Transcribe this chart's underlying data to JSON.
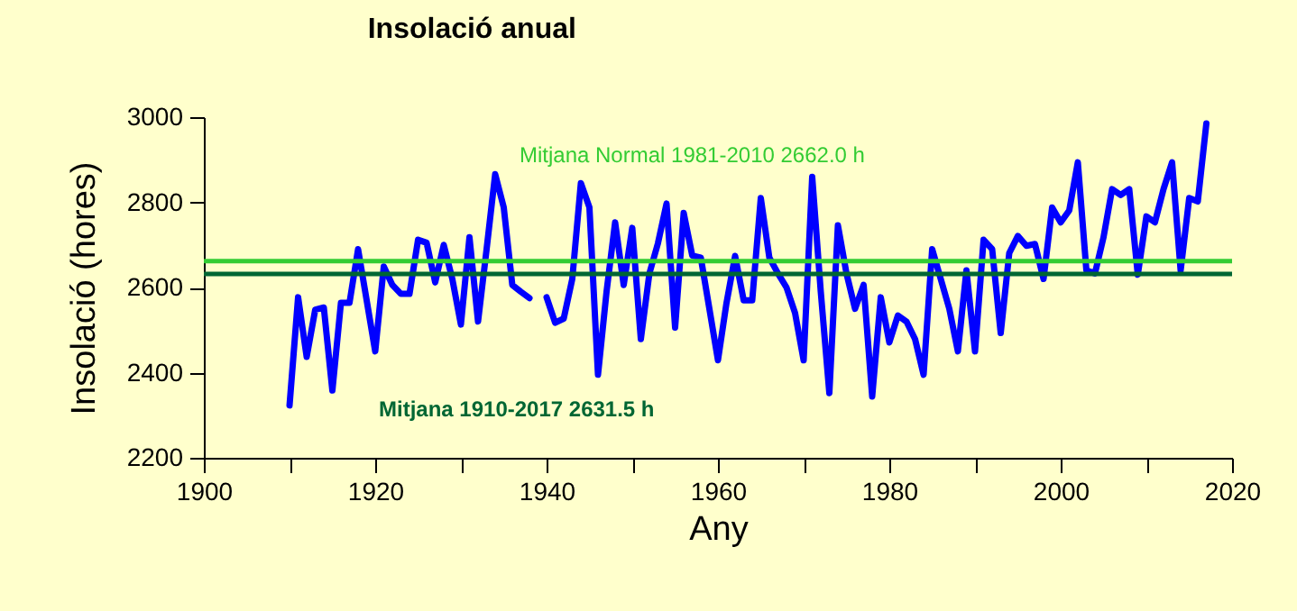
{
  "chart_data": {
    "type": "line",
    "title": "Insolació anual",
    "xlabel": "Any",
    "ylabel": "Insolació  (hores)",
    "x": [
      1910,
      1911,
      1912,
      1913,
      1914,
      1915,
      1916,
      1917,
      1918,
      1919,
      1920,
      1921,
      1922,
      1923,
      1924,
      1925,
      1926,
      1927,
      1928,
      1929,
      1930,
      1931,
      1932,
      1933,
      1934,
      1935,
      1936,
      1937,
      1938,
      1939,
      1940,
      1941,
      1942,
      1943,
      1944,
      1945,
      1946,
      1947,
      1948,
      1949,
      1950,
      1951,
      1952,
      1953,
      1954,
      1955,
      1956,
      1957,
      1958,
      1959,
      1960,
      1961,
      1962,
      1963,
      1964,
      1965,
      1966,
      1967,
      1968,
      1969,
      1970,
      1971,
      1972,
      1973,
      1974,
      1975,
      1976,
      1977,
      1978,
      1979,
      1980,
      1981,
      1982,
      1983,
      1984,
      1985,
      1986,
      1987,
      1988,
      1989,
      1990,
      1991,
      1992,
      1993,
      1994,
      1995,
      1996,
      1997,
      1998,
      1999,
      2000,
      2001,
      2002,
      2003,
      2004,
      2005,
      2006,
      2007,
      2008,
      2009,
      2010,
      2011,
      2012,
      2013,
      2014,
      2015,
      2016,
      2017
    ],
    "series": [
      {
        "color": "#0000ff",
        "values": [
          2323,
          2577,
          2437,
          2548,
          2553,
          2358,
          2564,
          2564,
          2690,
          2570,
          2450,
          2649,
          2606,
          2585,
          2585,
          2712,
          2705,
          2612,
          2700,
          2620,
          2513,
          2718,
          2520,
          2690,
          2866,
          2788,
          2606,
          2590,
          2575,
          null,
          2577,
          2517,
          2527,
          2620,
          2845,
          2788,
          2395,
          2590,
          2753,
          2606,
          2740,
          2479,
          2633,
          2704,
          2797,
          2506,
          2775,
          2675,
          2670,
          2550,
          2429,
          2564,
          2674,
          2570,
          2570,
          2810,
          2670,
          2633,
          2600,
          2540,
          2429,
          2860,
          2590,
          2352,
          2746,
          2633,
          2550,
          2606,
          2344,
          2577,
          2471,
          2534,
          2520,
          2479,
          2395,
          2690,
          2620,
          2550,
          2450,
          2640,
          2450,
          2712,
          2690,
          2493,
          2681,
          2721,
          2698,
          2702,
          2620,
          2788,
          2753,
          2781,
          2894,
          2640,
          2633,
          2718,
          2831,
          2817,
          2831,
          2630,
          2767,
          2753,
          2831,
          2894,
          2640,
          2810,
          2802,
          2985
        ]
      }
    ],
    "xlim": [
      1900,
      2020
    ],
    "xticks": [
      1900,
      {
        "value": 1910,
        "label": null
      },
      1920,
      {
        "value": 1930,
        "label": null
      },
      1940,
      {
        "value": 1950,
        "label": null
      },
      1960,
      {
        "value": 1970,
        "label": null
      },
      1980,
      {
        "value": 1990,
        "label": null
      },
      2000,
      {
        "value": 2010,
        "label": null
      },
      2020
    ],
    "ylim": [
      2200,
      3000
    ],
    "yticks": [
      2200,
      2400,
      2600,
      2800,
      3000
    ],
    "ref_lines": [
      {
        "axis": "y",
        "value": 2662.0,
        "label": "Mitjana Normal 1981-2010 2662.0 h",
        "color": "#33cc33"
      },
      {
        "axis": "y",
        "value": 2631.5,
        "label": "Mitjana 1910-2017 2631.5 h",
        "color": "#006633"
      }
    ],
    "grid": false,
    "marker": "none",
    "line_style": "solid"
  }
}
